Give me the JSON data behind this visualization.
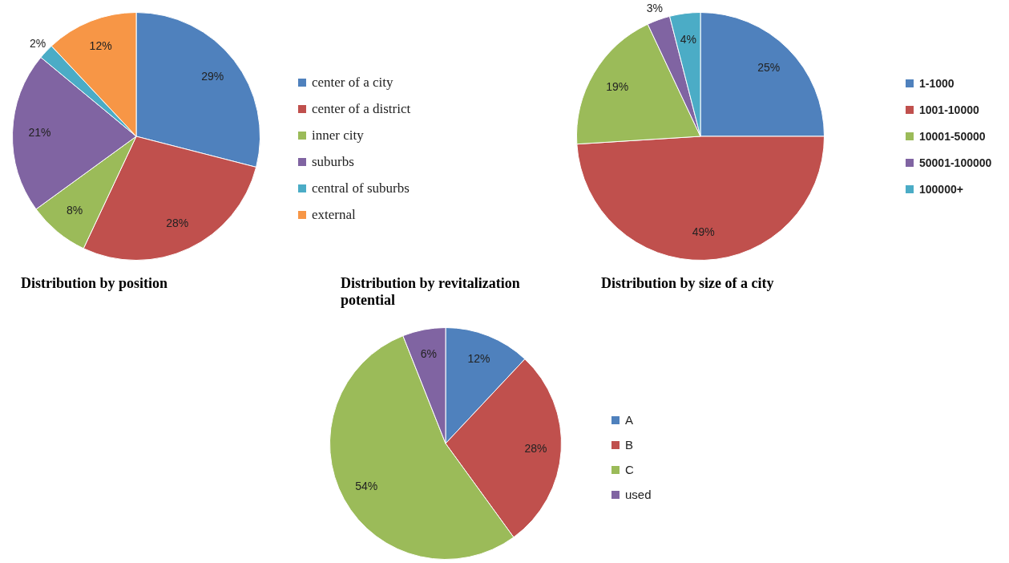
{
  "chart_data": [
    {
      "type": "pie",
      "title": "Distribution by position",
      "categories": [
        "center of a city",
        "center of a district",
        "inner city",
        "suburbs",
        "central of suburbs",
        "external"
      ],
      "values": [
        29,
        28,
        8,
        21,
        2,
        12
      ],
      "value_labels": [
        "29%",
        "28%",
        "8%",
        "21%",
        "2%",
        "12%"
      ],
      "colors": [
        "#4f81bd",
        "#c0504d",
        "#9bbb59",
        "#8064a2",
        "#4bacc6",
        "#f79646"
      ],
      "legend": "right"
    },
    {
      "type": "pie",
      "title": "Distribution by revitalization potential",
      "categories": [
        "A",
        "B",
        "C",
        "used"
      ],
      "values": [
        12,
        28,
        54,
        6
      ],
      "value_labels": [
        "12%",
        "28%",
        "54%",
        "6%"
      ],
      "colors": [
        "#4f81bd",
        "#c0504d",
        "#9bbb59",
        "#8064a2"
      ],
      "legend": "right"
    },
    {
      "type": "pie",
      "title": "Distribution by size of a city",
      "categories": [
        "1-1000",
        "1001-10000",
        "10001-50000",
        "50001-100000",
        "100000+"
      ],
      "values": [
        25,
        49,
        19,
        3,
        4
      ],
      "value_labels": [
        "25%",
        "49%",
        "19%",
        "3%",
        "4%"
      ],
      "colors": [
        "#4f81bd",
        "#c0504d",
        "#9bbb59",
        "#8064a2",
        "#4bacc6"
      ],
      "legend": "right"
    }
  ]
}
